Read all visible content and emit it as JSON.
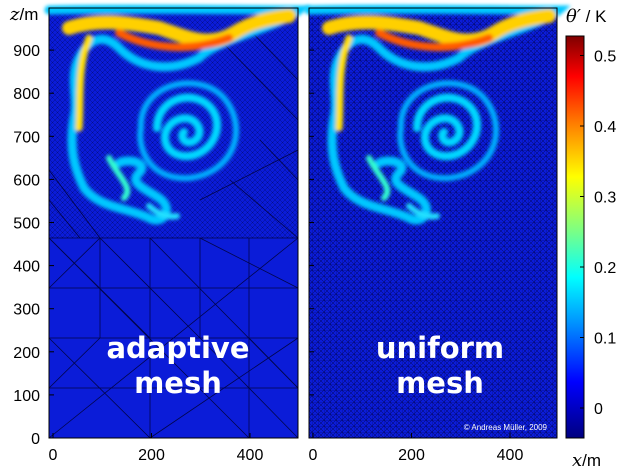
{
  "figure": {
    "panels": [
      {
        "id": "adaptive",
        "caption_line1": "adaptive",
        "caption_line2": "mesh"
      },
      {
        "id": "uniform",
        "caption_line1": "uniform",
        "caption_line2": "mesh"
      }
    ],
    "y_axis": {
      "symbol": "z",
      "unit": "/m",
      "ticks": [
        "0",
        "100",
        "200",
        "300",
        "400",
        "500",
        "600",
        "700",
        "800",
        "900"
      ]
    },
    "x_axis": {
      "symbol": "x",
      "unit": "/m",
      "ticks": [
        "0",
        "200",
        "400"
      ]
    },
    "colorbar": {
      "symbol": "θ′",
      "unit": " / K",
      "ticks": [
        "0",
        "0.1",
        "0.2",
        "0.3",
        "0.4",
        "0.5"
      ],
      "colors": [
        "#00007f",
        "#0000ff",
        "#00a0ff",
        "#00ffff",
        "#80ff80",
        "#ffff00",
        "#ff8000",
        "#ff0000",
        "#7f0000"
      ]
    },
    "credit": "© Andreas Müller, 2009",
    "colors": {
      "background_field": "#0b1cd8",
      "mesh_line": "#000033"
    }
  }
}
